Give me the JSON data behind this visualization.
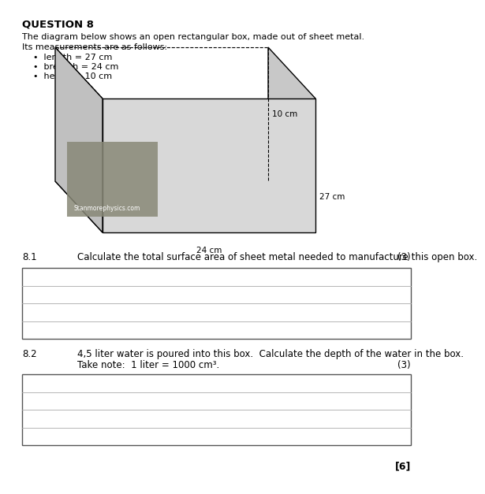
{
  "title": "QUESTION 8",
  "intro_line1": "The diagram below shows an open rectangular box, made out of sheet metal.",
  "intro_line2": "Its measurements are as follows:",
  "bullets": [
    "length = 27 cm",
    "breadth = 24 cm",
    "height = 10 cm"
  ],
  "label_10cm": "10 cm",
  "label_27cm": "27 cm",
  "label_24cm": "24 cm",
  "q81_num": "8.1",
  "q81_text": "Calculate the total surface area of sheet metal needed to manufacture this open box.",
  "q81_marks": "(3)",
  "q82_num": "8.2",
  "q82_line1": "4,5 liter water is poured into this box.  Calculate the depth of the water in the box.",
  "q82_line2": "Take note:  1 liter = 1000 cm³.",
  "q82_marks": "(3)",
  "total_marks": "[6]",
  "bg_color": "#ffffff",
  "text_color": "#000000",
  "box_line_color": "#000000",
  "answer_box_color": "#ffffff",
  "answer_box_border": "#555555",
  "watermark_text": "Stanmorephysics.com",
  "box_face_color": "#d8d8d8",
  "box_right_color": "#c8c8c8",
  "box_top_color": "#eeeeee",
  "photo_color": "#888877"
}
